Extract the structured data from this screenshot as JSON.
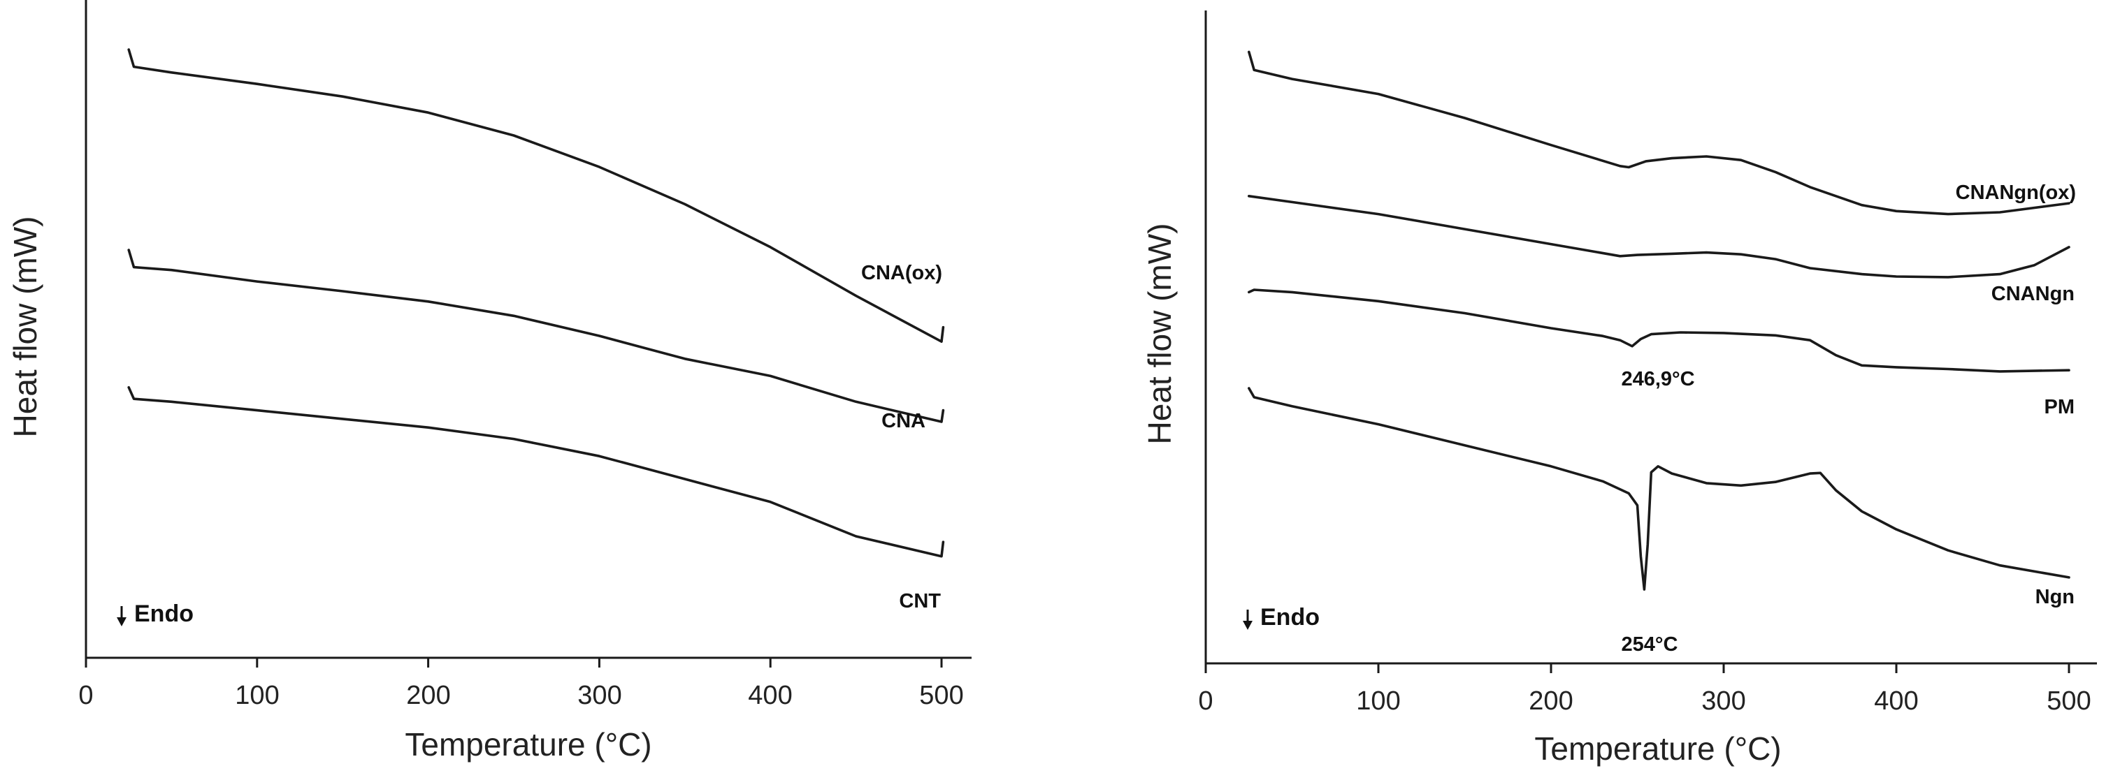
{
  "chart_data": [
    {
      "type": "line",
      "title": "",
      "xlabel": "Temperature (°C)",
      "ylabel": "Heat flow (mW)",
      "xlim": [
        0,
        520
      ],
      "ylim": [
        0,
        100
      ],
      "x_ticks": [
        0,
        100,
        200,
        300,
        400,
        500
      ],
      "y_ticks_shown": false,
      "endo_marker": "Endo",
      "series": [
        {
          "name": "CNA(ox)",
          "points": [
            [
              25,
              95
            ],
            [
              28,
              92
            ],
            [
              50,
              91
            ],
            [
              100,
              89
            ],
            [
              150,
              86.8
            ],
            [
              200,
              84
            ],
            [
              250,
              80
            ],
            [
              300,
              74.5
            ],
            [
              350,
              68
            ],
            [
              400,
              60.5
            ],
            [
              450,
              52
            ],
            [
              500,
              44
            ],
            [
              501,
              46.5
            ]
          ]
        },
        {
          "name": "CNA",
          "points": [
            [
              25,
              60
            ],
            [
              28,
              57
            ],
            [
              50,
              56.5
            ],
            [
              100,
              54.5
            ],
            [
              150,
              52.8
            ],
            [
              200,
              51
            ],
            [
              250,
              48.5
            ],
            [
              300,
              45
            ],
            [
              350,
              41
            ],
            [
              400,
              38
            ],
            [
              450,
              33.5
            ],
            [
              500,
              30
            ],
            [
              501,
              32
            ]
          ]
        },
        {
          "name": "CNT",
          "points": [
            [
              25,
              36
            ],
            [
              28,
              34
            ],
            [
              50,
              33.5
            ],
            [
              100,
              32
            ],
            [
              150,
              30.5
            ],
            [
              200,
              29
            ],
            [
              250,
              27
            ],
            [
              300,
              24
            ],
            [
              350,
              20
            ],
            [
              400,
              16
            ],
            [
              450,
              10
            ],
            [
              500,
              6.5
            ],
            [
              501,
              9
            ]
          ]
        }
      ],
      "annotations": []
    },
    {
      "type": "line",
      "title": "",
      "xlabel": "Temperature (°C)",
      "ylabel": "Heat flow (mW)",
      "xlim": [
        0,
        520
      ],
      "ylim": [
        0,
        100
      ],
      "x_ticks": [
        0,
        100,
        200,
        300,
        400,
        500
      ],
      "y_ticks_shown": false,
      "endo_marker": "Endo",
      "series": [
        {
          "name": "CNANgn(ox)",
          "points": [
            [
              25,
              96
            ],
            [
              28,
              93
            ],
            [
              50,
              91.5
            ],
            [
              100,
              89
            ],
            [
              150,
              85
            ],
            [
              200,
              80.5
            ],
            [
              240,
              77
            ],
            [
              245,
              76.8
            ],
            [
              255,
              77.8
            ],
            [
              270,
              78.3
            ],
            [
              290,
              78.6
            ],
            [
              310,
              78
            ],
            [
              330,
              76
            ],
            [
              350,
              73.5
            ],
            [
              380,
              70.5
            ],
            [
              400,
              69.5
            ],
            [
              430,
              69
            ],
            [
              460,
              69.3
            ],
            [
              500,
              70.8
            ]
          ]
        },
        {
          "name": "CNANgn",
          "points": [
            [
              25,
              72
            ],
            [
              50,
              71
            ],
            [
              100,
              69
            ],
            [
              150,
              66.5
            ],
            [
              200,
              64
            ],
            [
              240,
              62
            ],
            [
              250,
              62.2
            ],
            [
              270,
              62.4
            ],
            [
              290,
              62.6
            ],
            [
              310,
              62.3
            ],
            [
              330,
              61.5
            ],
            [
              350,
              60
            ],
            [
              380,
              59
            ],
            [
              400,
              58.6
            ],
            [
              430,
              58.5
            ],
            [
              460,
              59
            ],
            [
              480,
              60.5
            ],
            [
              500,
              63.5
            ]
          ]
        },
        {
          "name": "PM",
          "points": [
            [
              25,
              56
            ],
            [
              28,
              56.4
            ],
            [
              50,
              56
            ],
            [
              100,
              54.5
            ],
            [
              150,
              52.5
            ],
            [
              200,
              50
            ],
            [
              230,
              48.7
            ],
            [
              240,
              48
            ],
            [
              247,
              47
            ],
            [
              252,
              48.2
            ],
            [
              258,
              49
            ],
            [
              275,
              49.3
            ],
            [
              300,
              49.2
            ],
            [
              330,
              48.8
            ],
            [
              350,
              48
            ],
            [
              365,
              45.5
            ],
            [
              380,
              43.8
            ],
            [
              400,
              43.5
            ],
            [
              430,
              43.2
            ],
            [
              460,
              42.8
            ],
            [
              500,
              43
            ]
          ]
        },
        {
          "name": "Ngn",
          "points": [
            [
              25,
              40
            ],
            [
              28,
              38.5
            ],
            [
              50,
              37
            ],
            [
              100,
              34
            ],
            [
              150,
              30.5
            ],
            [
              200,
              27
            ],
            [
              230,
              24.5
            ],
            [
              245,
              22.5
            ],
            [
              250,
              20.5
            ],
            [
              252,
              12
            ],
            [
              254,
              6.5
            ],
            [
              256,
              14
            ],
            [
              258,
              26
            ],
            [
              262,
              27
            ],
            [
              270,
              25.8
            ],
            [
              290,
              24.2
            ],
            [
              310,
              23.8
            ],
            [
              330,
              24.4
            ],
            [
              350,
              25.8
            ],
            [
              356,
              25.9
            ],
            [
              365,
              23
            ],
            [
              380,
              19.5
            ],
            [
              400,
              16.5
            ],
            [
              430,
              13
            ],
            [
              460,
              10.5
            ],
            [
              500,
              8.5
            ]
          ]
        }
      ],
      "annotations": [
        {
          "text": "246,9°C",
          "x": 247,
          "y": 47
        },
        {
          "text": "254°C",
          "x": 254,
          "y": 6.5
        }
      ]
    }
  ]
}
